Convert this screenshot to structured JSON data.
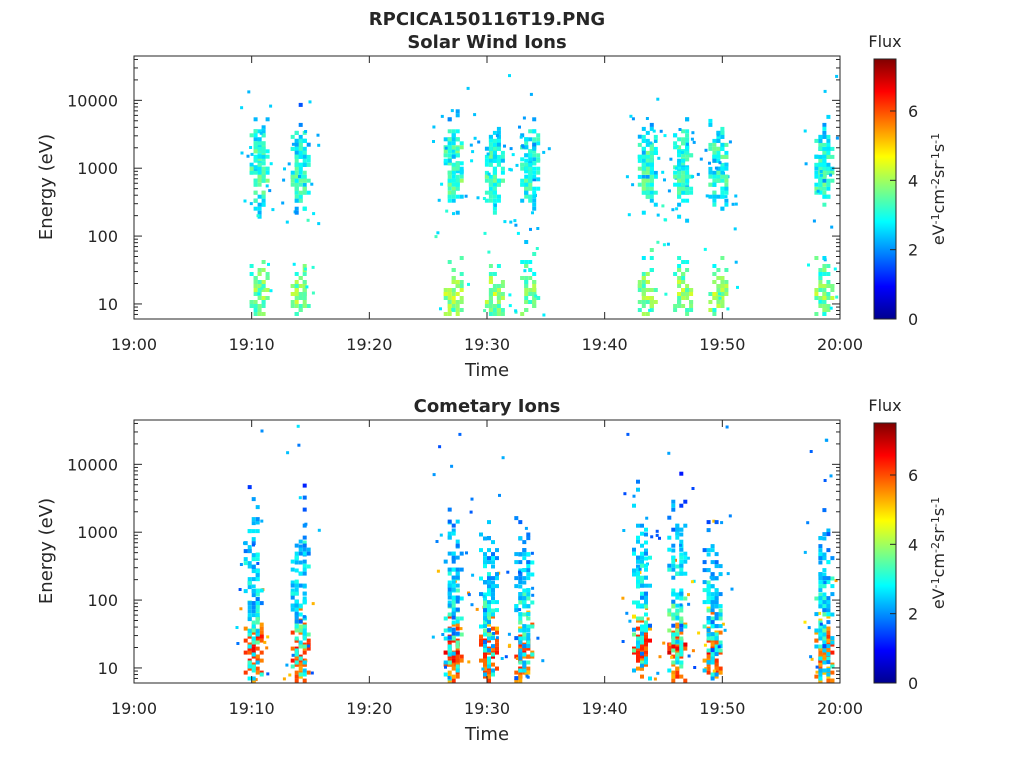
{
  "figure_title": "RPCICA150116T19.PNG",
  "colorbar": {
    "colormap": "jet",
    "title": "Flux",
    "label_parts": [
      "eV",
      "-1",
      "cm",
      "-2",
      "sr",
      "-1",
      "s",
      "-1"
    ],
    "range": [
      0,
      7.5
    ],
    "ticks": [
      "0",
      "2",
      "4",
      "6"
    ]
  },
  "chart_data": [
    {
      "type": "heatmap",
      "title": "Solar Wind Ions",
      "xlabel": "Time",
      "ylabel": "Energy (eV)",
      "x_ticks": [
        "19:00",
        "19:10",
        "19:20",
        "19:30",
        "19:40",
        "19:50",
        "20:00"
      ],
      "xlim": [
        "19:00",
        "20:00"
      ],
      "y_ticks": [
        "10",
        "100",
        "1000",
        "10000"
      ],
      "ylim": [
        6,
        45000
      ],
      "y_scale": "log",
      "grid": false,
      "value_label": "Flux",
      "scans": [
        {
          "time": "19:10.5",
          "clusters": [
            {
              "e": 1900,
              "v": 3.2,
              "s": 0.05
            },
            {
              "e": 700,
              "v": 3.4,
              "s": 0.05
            },
            {
              "e": 15,
              "v": 3.9,
              "s": 0.06
            }
          ]
        },
        {
          "time": "19:14.0",
          "clusters": [
            {
              "e": 1800,
              "v": 3.2,
              "s": 0.05
            },
            {
              "e": 700,
              "v": 3.3,
              "s": 0.05
            },
            {
              "e": 15,
              "v": 3.9,
              "s": 0.06
            }
          ]
        },
        {
          "time": "19:27.0",
          "clusters": [
            {
              "e": 1900,
              "v": 3.3,
              "s": 0.05
            },
            {
              "e": 700,
              "v": 3.4,
              "s": 0.05
            },
            {
              "e": 15,
              "v": 4.0,
              "s": 0.06
            }
          ]
        },
        {
          "time": "19:30.5",
          "clusters": [
            {
              "e": 1800,
              "v": 3.2,
              "s": 0.05
            },
            {
              "e": 700,
              "v": 3.3,
              "s": 0.05
            },
            {
              "e": 15,
              "v": 4.0,
              "s": 0.06
            }
          ]
        },
        {
          "time": "19:33.5",
          "clusters": [
            {
              "e": 1900,
              "v": 3.1,
              "s": 0.05
            },
            {
              "e": 700,
              "v": 3.2,
              "s": 0.05
            },
            {
              "e": 15,
              "v": 3.8,
              "s": 0.06
            }
          ]
        },
        {
          "time": "19:43.5",
          "clusters": [
            {
              "e": 1800,
              "v": 3.2,
              "s": 0.05
            },
            {
              "e": 700,
              "v": 3.4,
              "s": 0.05
            },
            {
              "e": 15,
              "v": 3.9,
              "s": 0.06
            }
          ]
        },
        {
          "time": "19:46.5",
          "clusters": [
            {
              "e": 1900,
              "v": 3.3,
              "s": 0.05
            },
            {
              "e": 700,
              "v": 3.3,
              "s": 0.05
            },
            {
              "e": 15,
              "v": 4.0,
              "s": 0.06
            }
          ]
        },
        {
          "time": "19:49.5",
          "clusters": [
            {
              "e": 1800,
              "v": 3.2,
              "s": 0.05
            },
            {
              "e": 700,
              "v": 3.2,
              "s": 0.05
            },
            {
              "e": 15,
              "v": 3.9,
              "s": 0.06
            }
          ]
        },
        {
          "time": "19:58.5",
          "clusters": [
            {
              "e": 1800,
              "v": 3.1,
              "s": 0.05
            },
            {
              "e": 700,
              "v": 3.3,
              "s": 0.05
            },
            {
              "e": 15,
              "v": 3.8,
              "s": 0.06
            }
          ]
        }
      ]
    },
    {
      "type": "heatmap",
      "title": "Cometary Ions",
      "xlabel": "Time",
      "ylabel": "Energy (eV)",
      "x_ticks": [
        "19:00",
        "19:10",
        "19:20",
        "19:30",
        "19:40",
        "19:50",
        "20:00"
      ],
      "xlim": [
        "19:00",
        "20:00"
      ],
      "y_ticks": [
        "10",
        "100",
        "1000",
        "10000"
      ],
      "ylim": [
        6,
        45000
      ],
      "y_scale": "log",
      "grid": false,
      "value_label": "Flux",
      "scans": [
        {
          "time": "19:10.0",
          "clusters": [
            {
              "e": 18,
              "v": 6.2,
              "s": 0.06
            },
            {
              "e": 50,
              "v": 3.2,
              "s": 0.14
            },
            {
              "e": 250,
              "v": 2.6,
              "s": 0.12
            }
          ]
        },
        {
          "time": "19:14.0",
          "clusters": [
            {
              "e": 18,
              "v": 6.1,
              "s": 0.06
            },
            {
              "e": 50,
              "v": 3.3,
              "s": 0.14
            },
            {
              "e": 200,
              "v": 2.6,
              "s": 0.12
            }
          ]
        },
        {
          "time": "19:27.0",
          "clusters": [
            {
              "e": 18,
              "v": 6.3,
              "s": 0.06
            },
            {
              "e": 50,
              "v": 3.2,
              "s": 0.14
            },
            {
              "e": 200,
              "v": 2.6,
              "s": 0.12
            }
          ]
        },
        {
          "time": "19:30.0",
          "clusters": [
            {
              "e": 18,
              "v": 6.2,
              "s": 0.06
            },
            {
              "e": 50,
              "v": 3.2,
              "s": 0.14
            },
            {
              "e": 150,
              "v": 2.6,
              "s": 0.12
            }
          ]
        },
        {
          "time": "19:33.0",
          "clusters": [
            {
              "e": 18,
              "v": 6.1,
              "s": 0.06
            },
            {
              "e": 50,
              "v": 3.1,
              "s": 0.14
            },
            {
              "e": 150,
              "v": 2.6,
              "s": 0.12
            }
          ]
        },
        {
          "time": "19:43.0",
          "clusters": [
            {
              "e": 18,
              "v": 6.2,
              "s": 0.06
            },
            {
              "e": 50,
              "v": 3.2,
              "s": 0.14
            },
            {
              "e": 300,
              "v": 2.7,
              "s": 0.12
            }
          ]
        },
        {
          "time": "19:46.0",
          "clusters": [
            {
              "e": 18,
              "v": 6.3,
              "s": 0.06
            },
            {
              "e": 50,
              "v": 3.3,
              "s": 0.14
            },
            {
              "e": 300,
              "v": 2.6,
              "s": 0.12
            }
          ]
        },
        {
          "time": "19:49.0",
          "clusters": [
            {
              "e": 18,
              "v": 6.1,
              "s": 0.06
            },
            {
              "e": 50,
              "v": 3.1,
              "s": 0.14
            },
            {
              "e": 150,
              "v": 2.6,
              "s": 0.12
            }
          ]
        },
        {
          "time": "19:58.5",
          "clusters": [
            {
              "e": 18,
              "v": 6.0,
              "s": 0.06
            },
            {
              "e": 50,
              "v": 3.1,
              "s": 0.14
            },
            {
              "e": 150,
              "v": 2.6,
              "s": 0.12
            }
          ]
        }
      ]
    }
  ]
}
